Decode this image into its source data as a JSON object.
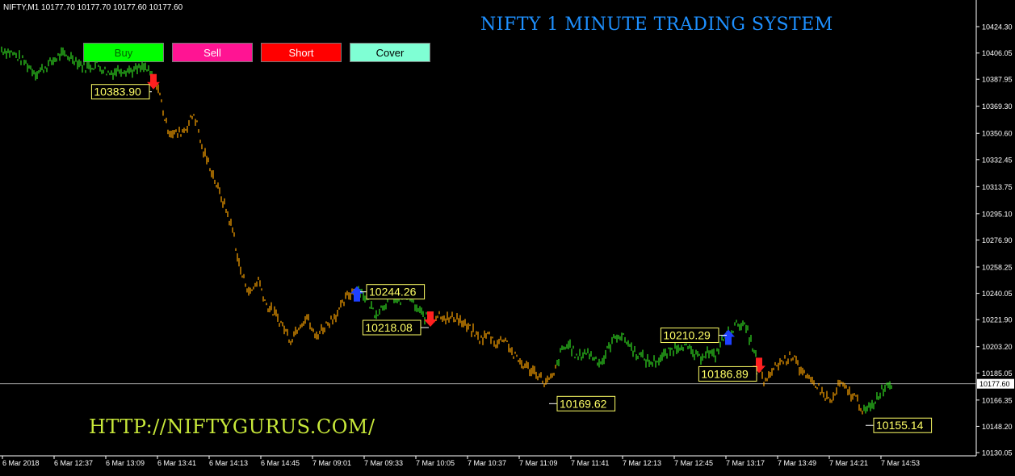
{
  "header": {
    "symbol_info": "NIFTY,M1  10177.70 10177.70 10177.60 10177.60"
  },
  "title": "NIFTY 1 MINUTE TRADING SYSTEM",
  "website": "HTTP://NIFTYGURUS.COM/",
  "buttons": [
    {
      "label": "Buy",
      "bg": "#00ff00",
      "fg": "#006400"
    },
    {
      "label": "Sell",
      "bg": "#ff1493",
      "fg": "#ffffff"
    },
    {
      "label": "Short",
      "bg": "#ff0000",
      "fg": "#ffffff"
    },
    {
      "label": "Cover",
      "bg": "#7fffd4",
      "fg": "#000000"
    }
  ],
  "colors": {
    "up_color": "#33dd22",
    "down_color": "#ffa500",
    "label_bg": "#000000",
    "label_border": "#ffff66",
    "label_text": "#ffff66",
    "buy_arrow": "#1e40ff",
    "sell_arrow": "#ff2020",
    "axis": "#ffffff",
    "current_price_line": "#c0c0c0"
  },
  "chart_data": {
    "type": "line",
    "title": "NIFTY 1 MINUTE TRADING SYSTEM",
    "ylim": [
      10130.05,
      10433.5
    ],
    "y_ticks": [
      "10424.30",
      "10406.05",
      "10387.95",
      "10369.30",
      "10350.60",
      "10332.45",
      "10313.75",
      "10295.10",
      "10276.90",
      "10258.25",
      "10240.05",
      "10221.90",
      "10203.20",
      "10185.05",
      "10166.35",
      "10148.20",
      "10130.05"
    ],
    "x_ticks": [
      "6 Mar 2018",
      "6 Mar 12:37",
      "6 Mar 13:09",
      "6 Mar 13:41",
      "6 Mar 14:13",
      "6 Mar 14:45",
      "7 Mar 09:01",
      "7 Mar 09:33",
      "7 Mar 10:05",
      "7 Mar 10:37",
      "7 Mar 11:09",
      "7 Mar 11:41",
      "7 Mar 12:13",
      "7 Mar 12:45",
      "7 Mar 13:17",
      "7 Mar 13:49",
      "7 Mar 14:21",
      "7 Mar 14:53"
    ],
    "current_price": "10177.60",
    "price_path": [
      [
        0,
        10409
      ],
      [
        15,
        10406
      ],
      [
        30,
        10400
      ],
      [
        45,
        10392
      ],
      [
        60,
        10398
      ],
      [
        75,
        10405
      ],
      [
        90,
        10403
      ],
      [
        105,
        10396
      ],
      [
        120,
        10398
      ],
      [
        135,
        10392
      ],
      [
        150,
        10395
      ],
      [
        165,
        10394
      ],
      [
        180,
        10396
      ],
      [
        190,
        10388
      ],
      [
        195,
        10384
      ],
      [
        200,
        10372
      ],
      [
        205,
        10358
      ],
      [
        210,
        10352
      ],
      [
        220,
        10350
      ],
      [
        230,
        10354
      ],
      [
        240,
        10364
      ],
      [
        245,
        10355
      ],
      [
        250,
        10340
      ],
      [
        260,
        10328
      ],
      [
        270,
        10312
      ],
      [
        280,
        10298
      ],
      [
        290,
        10280
      ],
      [
        295,
        10262
      ],
      [
        300,
        10252
      ],
      [
        310,
        10240
      ],
      [
        320,
        10250
      ],
      [
        330,
        10232
      ],
      [
        340,
        10226
      ],
      [
        350,
        10218
      ],
      [
        360,
        10208
      ],
      [
        370,
        10218
      ],
      [
        380,
        10224
      ],
      [
        390,
        10210
      ],
      [
        400,
        10216
      ],
      [
        410,
        10222
      ],
      [
        420,
        10228
      ],
      [
        430,
        10238
      ],
      [
        440,
        10243
      ],
      [
        445,
        10244
      ],
      [
        455,
        10235
      ],
      [
        465,
        10226
      ],
      [
        475,
        10232
      ],
      [
        485,
        10238
      ],
      [
        495,
        10234
      ],
      [
        505,
        10240
      ],
      [
        515,
        10230
      ],
      [
        525,
        10224
      ],
      [
        535,
        10222
      ],
      [
        545,
        10226
      ],
      [
        555,
        10222
      ],
      [
        565,
        10224
      ],
      [
        575,
        10218
      ],
      [
        585,
        10214
      ],
      [
        595,
        10208
      ],
      [
        605,
        10212
      ],
      [
        615,
        10205
      ],
      [
        625,
        10210
      ],
      [
        635,
        10198
      ],
      [
        645,
        10192
      ],
      [
        655,
        10188
      ],
      [
        665,
        10185
      ],
      [
        675,
        10178
      ],
      [
        685,
        10182
      ],
      [
        695,
        10200
      ],
      [
        705,
        10205
      ],
      [
        715,
        10195
      ],
      [
        725,
        10200
      ],
      [
        735,
        10196
      ],
      [
        745,
        10192
      ],
      [
        755,
        10204
      ],
      [
        765,
        10212
      ],
      [
        775,
        10208
      ],
      [
        785,
        10200
      ],
      [
        795,
        10196
      ],
      [
        805,
        10192
      ],
      [
        815,
        10194
      ],
      [
        825,
        10198
      ],
      [
        835,
        10202
      ],
      [
        845,
        10205
      ],
      [
        855,
        10200
      ],
      [
        865,
        10195
      ],
      [
        875,
        10200
      ],
      [
        885,
        10196
      ],
      [
        895,
        10208
      ],
      [
        905,
        10214
      ],
      [
        915,
        10220
      ],
      [
        925,
        10215
      ],
      [
        935,
        10198
      ],
      [
        940,
        10189
      ],
      [
        945,
        10180
      ],
      [
        950,
        10178
      ],
      [
        955,
        10186
      ],
      [
        965,
        10192
      ],
      [
        975,
        10195
      ],
      [
        985,
        10198
      ],
      [
        990,
        10188
      ],
      [
        1000,
        10180
      ],
      [
        1010,
        10178
      ],
      [
        1020,
        10170
      ],
      [
        1030,
        10165
      ],
      [
        1040,
        10178
      ],
      [
        1050,
        10172
      ],
      [
        1060,
        10168
      ],
      [
        1070,
        10158
      ],
      [
        1080,
        10162
      ],
      [
        1090,
        10172
      ],
      [
        1100,
        10178
      ],
      [
        1105,
        10177
      ]
    ],
    "signals": [
      {
        "type": "sell",
        "label": "10383.90",
        "xi": 190,
        "price": 10386
      },
      {
        "type": "buy",
        "label": "10244.26",
        "xi": 442,
        "price": 10240
      },
      {
        "type": "sell",
        "label": "10218.08",
        "xi": 533,
        "price": 10222
      },
      {
        "type": "buy",
        "label": "10210.29",
        "xi": 902,
        "price": 10210
      },
      {
        "type": "sell",
        "label": "10186.89",
        "xi": 940,
        "price": 10190
      },
      {
        "type": "low",
        "label": "10169.62",
        "xi": 676,
        "price": 10170
      },
      {
        "type": "low",
        "label": "10155.14",
        "xi": 1068,
        "price": 10155
      }
    ]
  }
}
